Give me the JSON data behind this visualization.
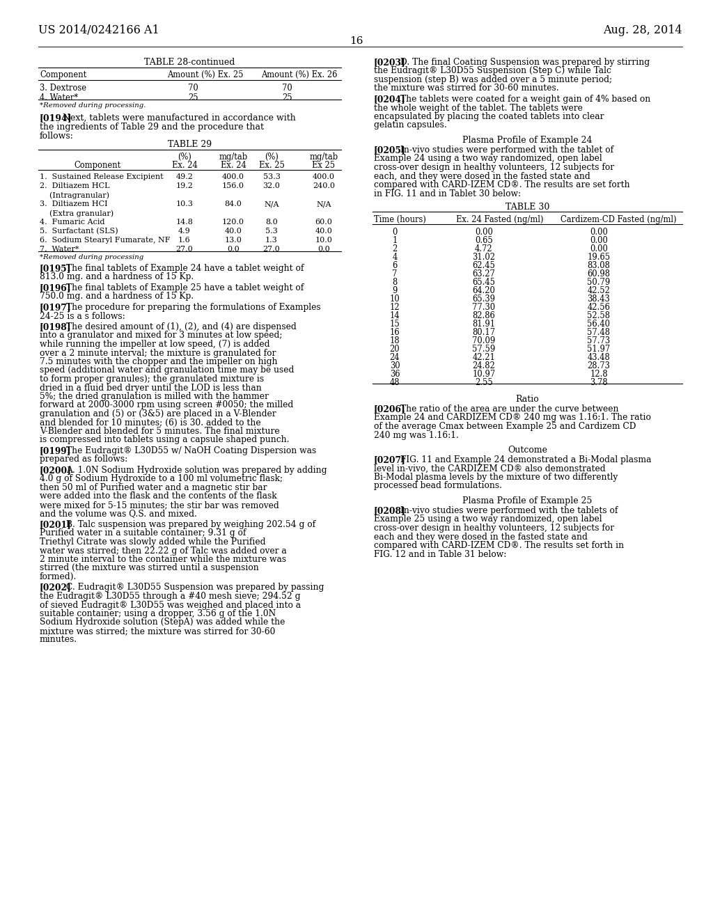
{
  "bg_color": "#ffffff",
  "header_left": "US 2014/0242166 A1",
  "header_right": "Aug. 28, 2014",
  "page_number": "16",
  "table28_title": "TABLE 28-continued",
  "table28_headers": [
    "Component",
    "Amount (%) Ex. 25",
    "Amount (%) Ex. 26"
  ],
  "table28_rows": [
    [
      "3. Dextrose",
      "70",
      "70"
    ],
    [
      "4. Water*",
      "25",
      "25"
    ]
  ],
  "table28_footnote": "*Removed during processing.",
  "table29_title": "TABLE 29",
  "table29_rows": [
    [
      "1.  Sustained Release Excipient",
      "49.2",
      "400.0",
      "53.3",
      "400.0"
    ],
    [
      "2.  Diltiazem HCL",
      "19.2",
      "156.0",
      "32.0",
      "240.0"
    ],
    [
      "    (Intragranular)",
      "",
      "",
      "",
      ""
    ],
    [
      "3.  Diltiazem HCI",
      "10.3",
      "84.0",
      "N/A",
      "N/A"
    ],
    [
      "    (Extra granular)",
      "",
      "",
      "",
      ""
    ],
    [
      "4.  Fumaric Acid",
      "14.8",
      "120.0",
      "8.0",
      "60.0"
    ],
    [
      "5.  Surfactant (SLS)",
      "4.9",
      "40.0",
      "5.3",
      "40.0"
    ],
    [
      "6.  Sodium Stearyl Fumarate, NF",
      "1.6",
      "13.0",
      "1.3",
      "10.0"
    ],
    [
      "7.  Water*",
      "27.0",
      "0.0",
      "27.0",
      "0.0"
    ]
  ],
  "table29_footnote": "*Removed during processing",
  "table30_title": "TABLE 30",
  "table30_headers": [
    "Time (hours)",
    "Ex. 24 Fasted (ng/ml)",
    "Cardizem-CD Fasted (ng/ml)"
  ],
  "table30_rows": [
    [
      "0",
      "0.00",
      "0.00"
    ],
    [
      "1",
      "0.65",
      "0.00"
    ],
    [
      "2",
      "4.72",
      "0.00"
    ],
    [
      "4",
      "31.02",
      "19.65"
    ],
    [
      "6",
      "62.45",
      "83.08"
    ],
    [
      "7",
      "63.27",
      "60.98"
    ],
    [
      "8",
      "65.45",
      "50.79"
    ],
    [
      "9",
      "64.20",
      "42.52"
    ],
    [
      "10",
      "65.39",
      "38.43"
    ],
    [
      "12",
      "77.30",
      "42.56"
    ],
    [
      "14",
      "82.86",
      "52.58"
    ],
    [
      "15",
      "81.91",
      "56.40"
    ],
    [
      "16",
      "80.17",
      "57.48"
    ],
    [
      "18",
      "70.09",
      "57.73"
    ],
    [
      "20",
      "57.59",
      "51.97"
    ],
    [
      "24",
      "42.21",
      "43.48"
    ],
    [
      "30",
      "24.82",
      "28.73"
    ],
    [
      "36",
      "10.97",
      "12.8"
    ],
    [
      "48",
      "2.55",
      "3.78"
    ]
  ],
  "ratio_title": "Ratio",
  "outcome_title": "Outcome",
  "plasma24_title": "Plasma Profile of Example 24",
  "plasma25_title": "Plasma Profile of Example 25",
  "left_col_paras": [
    {
      "tag": "[0194]",
      "text": "Next, tablets were manufactured in accordance with the ingredients of Table 29 and the procedure that follows:"
    },
    {
      "tag": "[0195]",
      "text": "The final tablets of Example 24 have a tablet weight of 813.0 mg. and a hardness of 15 Kp."
    },
    {
      "tag": "[0196]",
      "text": "The final tablets of Example 25 have a tablet weight of 750.0 mg. and a hardness of 15 Kp."
    },
    {
      "tag": "[0197]",
      "text": "The procedure for preparing the formulations of Examples 24-25 is a s follows:"
    },
    {
      "tag": "[0198]",
      "text": "The desired amount of (1), (2), and (4) are dispensed into a granulator and mixed for 3 minutes at low speed; while running the impeller at low speed, (7) is added over a 2 minute interval; the mixture is granulated for 7.5 minutes with the chopper and the impeller on high speed (additional water and granulation time may be used to form proper granules); the granulated mixture is dried in a fluid bed dryer until the LOD is less than 5%; the dried granulation is milled with the hammer forward at 2000-3000 rpm using screen #0050; the milled granulation and (5) or (3&5) are placed in a V-Blender and blended for 10 minutes; (6) is 30. added to the V-Blender and blended for 5 minutes. The final mixture is compressed into tablets using a capsule shaped punch."
    },
    {
      "tag": "[0199]",
      "text": "The Eudragit® L30D55 w/ NaOH Coating Dispersion was prepared as follows:"
    },
    {
      "tag": "[0200]",
      "text": "A. 1.0N Sodium Hydroxide solution was prepared by adding 4.0 g of Sodium Hydroxide to a 100 ml volumetric flask; then 50 ml of Purified water and a magnetic stir bar were added into the flask and the contents of the flask were mixed for 5-15 minutes; the stir bar was removed and the volume was Q.S. and mixed."
    },
    {
      "tag": "[0201]",
      "text": "B. Talc suspension was prepared by weighing 202.54 g of Purified water in a suitable container; 9.31 g of Triethyl Citrate was slowly added while the Purified water was stirred; then 22.22 g of Talc was added over a 2 minute interval to the container while the mixture was stirred (the mixture was stirred until a suspension formed)."
    },
    {
      "tag": "[0202]",
      "text": "C. Eudragit® L30D55 Suspension was prepared by passing the Eudragit® L30D55 through a #40 mesh sieve; 294.52 g of sieved Eudragit® L30D55 was weighed and placed into a suitable container; using a dropper, 3.56 g of the 1.0N Sodium Hydroxide solution (StepA) was added while the mixture was stirred; the mixture was stirred for 30-60 minutes."
    }
  ],
  "right_col_paras": [
    {
      "tag": "[0203]",
      "text": "D. The final Coating Suspension was prepared by stirring the Eudragit® L30D55 Suspension (Step C) while Talc suspension (step B) was added over a 5 minute period; the mixture was stirred for 30-60 minutes."
    },
    {
      "tag": "[0204]",
      "text": "The tablets were coated for a weight gain of 4% based on the whole weight of the tablet. The tablets were encapsulated by placing the coated tablets into clear gelatin capsules."
    },
    {
      "tag": "[0205]",
      "text": "In-vivo studies were performed with the tablet of Example 24 using a two way randomized, open label cross-over design in healthy volunteers, 12 subjects for each, and they were dosed in the fasted state and compared with CARD-IZEM CD®. The results are set forth in FIG. 11 and in Tablet 30 below:"
    },
    {
      "tag": "[0206]",
      "text": "The ratio of the area are under the curve between Example 24 and CARDIZEM CD® 240 mg was 1.16:1. The ratio of the average Cmax between Example 25 and Cardizem CD 240 mg was 1.16:1."
    },
    {
      "tag": "[0207]",
      "text": "FIG. 11 and Example 24 demonstrated a Bi-Modal plasma level in-vivo, the CARDIZEM CD® also demonstrated Bi-Modal plasma levels by the mixture of two differently processed bead formulations."
    },
    {
      "tag": "[0208]",
      "text": "In-vivo studies were performed with the tablets of Example 25 using a two way randomized, open label cross-over design in healthy volunteers, 12 subjects for each and they were dosed in the fasted state and compared with CARD-IZEM CD®. The results set forth in FIG. 12 and in Table 31 below:"
    }
  ]
}
